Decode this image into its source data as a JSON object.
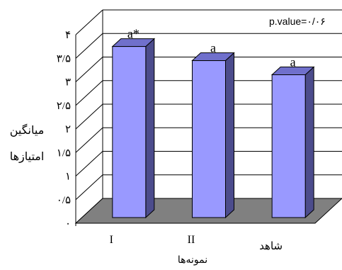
{
  "chart_data": {
    "type": "bar",
    "style": "3d-column",
    "categories": [
      "I",
      "II",
      "شاهد"
    ],
    "values": [
      3.6,
      3.3,
      3.0
    ],
    "data_labels": [
      "a*",
      "a",
      "a"
    ],
    "ylabel_lines": [
      "میانگین",
      "امتیازها"
    ],
    "xlabel": "نمونه‌ها",
    "annotation": "p.value=۰/۰۶",
    "y_tick_labels": [
      "۰",
      "۰/۵",
      "۱",
      "۱/۵",
      "۲",
      "۲/۵",
      "۳",
      "۳/۵",
      "۴"
    ],
    "ylim": [
      0,
      4
    ],
    "grid": true,
    "colors": {
      "bar_front": "#9999ff",
      "bar_side": "#4c4c8c",
      "bar_top": "#7070cc",
      "floor": "#808080",
      "grid": "#000000"
    }
  }
}
